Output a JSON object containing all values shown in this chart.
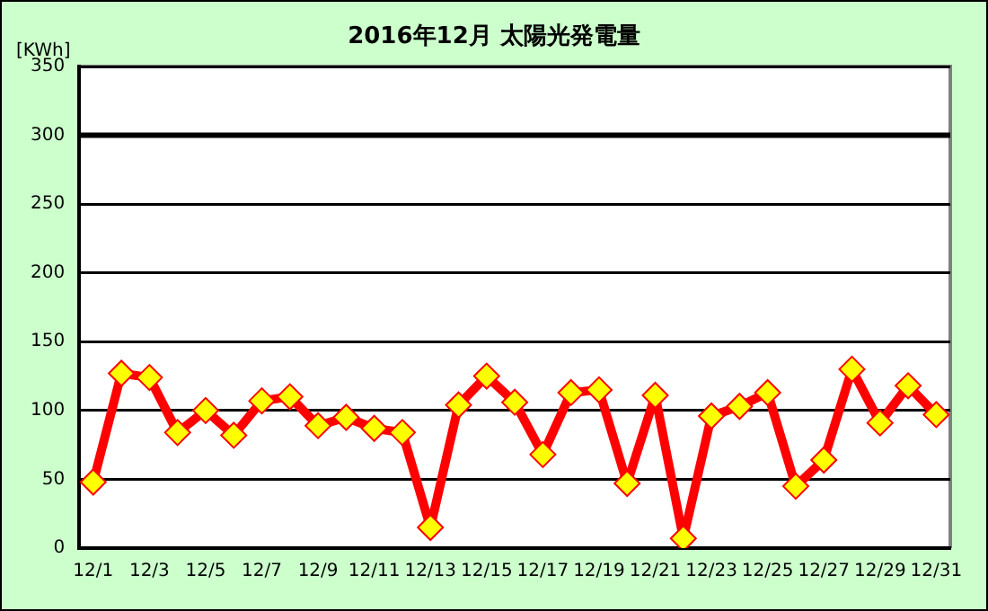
{
  "chart_data": {
    "type": "line",
    "title": "2016年12月 太陽光発電量",
    "ylabel": "[KWh]",
    "categories": [
      "12/1",
      null,
      "12/3",
      null,
      "12/5",
      null,
      "12/7",
      null,
      "12/9",
      null,
      "12/11",
      null,
      "12/13",
      null,
      "12/15",
      null,
      "12/17",
      null,
      "12/19",
      null,
      "12/21",
      null,
      "12/23",
      null,
      "12/25",
      null,
      "12/27",
      null,
      "12/29",
      null,
      "12/31"
    ],
    "series": [
      {
        "color": "#ff0000",
        "values": [
          48,
          127,
          124,
          84,
          100,
          82,
          107,
          110,
          89,
          95,
          87,
          84,
          15,
          104,
          125,
          106,
          68,
          113,
          115,
          47,
          111,
          7,
          96,
          103,
          113,
          45,
          64,
          130,
          91,
          118,
          97
        ]
      }
    ],
    "ylim": [
      0,
      350
    ],
    "yticks": [
      0,
      50,
      100,
      150,
      200,
      250,
      300,
      350
    ],
    "grid": "y",
    "marker": "diamond",
    "legend": false,
    "ref_lines": [
      {
        "axis": "y",
        "value": 300,
        "color": "#000000"
      }
    ]
  }
}
